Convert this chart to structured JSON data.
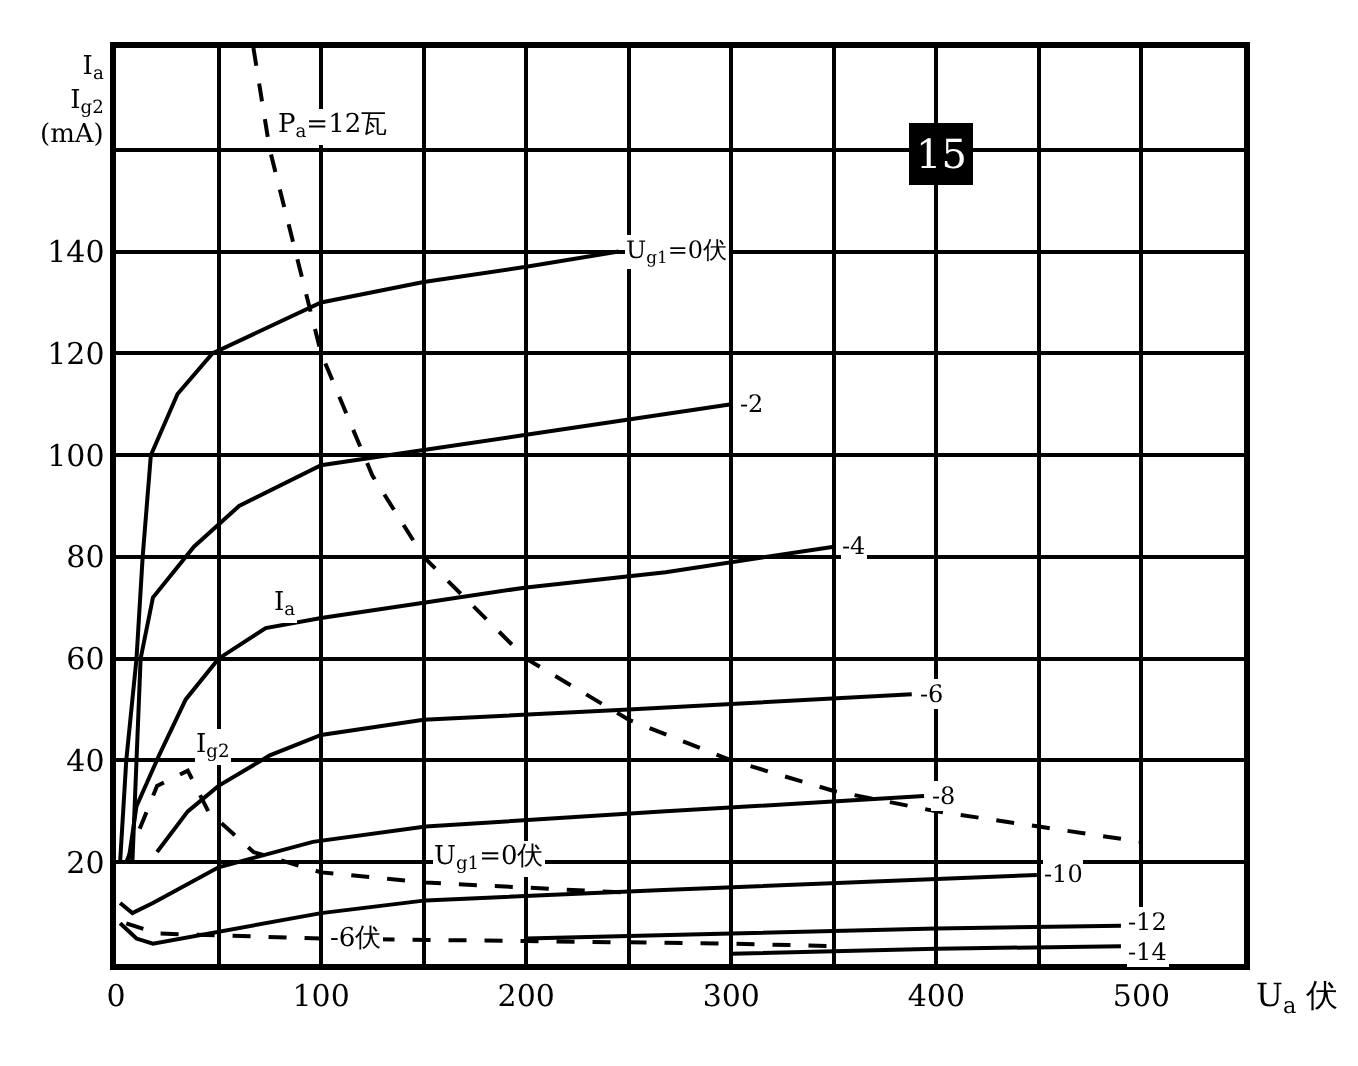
{
  "chart_data": {
    "type": "line",
    "xlabel": "U$_{a}$ 伏",
    "ylabel": "I$_{a}$ I$_{g2}$ (mA)",
    "xlim": [
      0,
      550
    ],
    "ylim": [
      0,
      180
    ],
    "xticks": [
      0,
      {
        "value": 50,
        "label": null
      },
      100,
      {
        "value": 150,
        "label": null
      },
      200,
      {
        "value": 250,
        "label": null
      },
      300,
      {
        "value": 350,
        "label": null
      },
      400,
      {
        "value": 450,
        "label": null
      },
      500,
      {
        "value": 550,
        "label": null
      }
    ],
    "yticks": [
      {
        "value": 0,
        "label": null
      },
      20,
      40,
      60,
      80,
      100,
      120,
      140,
      {
        "value": 160,
        "label": null
      },
      {
        "value": 180,
        "label": null
      }
    ],
    "grid": true,
    "line_style": "solid",
    "series": [
      {
        "name": "U$_{g1}$=0伏",
        "color": "#000000",
        "x": [
          2,
          5,
          10,
          13,
          17,
          30,
          47,
          100,
          150,
          200,
          245
        ],
        "values": [
          20,
          40,
          60,
          80,
          100,
          112,
          120,
          130,
          134,
          137,
          140
        ]
      },
      {
        "name": "-2",
        "color": "#000000",
        "x": [
          8,
          10,
          12,
          18,
          38,
          60,
          100,
          150,
          200,
          250,
          300
        ],
        "values": [
          20,
          40,
          60,
          72,
          82,
          90,
          98,
          101,
          104,
          107,
          110
        ]
      },
      {
        "name": "-4",
        "color": "#000000",
        "x": [
          6,
          10,
          21,
          34,
          50,
          73,
          100,
          150,
          200,
          268,
          350
        ],
        "values": [
          20,
          31,
          41,
          52,
          60,
          66,
          68,
          71,
          74,
          77,
          82
        ]
      },
      {
        "name": "-6",
        "color": "#000000",
        "x": [
          20,
          35,
          50,
          75,
          100,
          150,
          250,
          388
        ],
        "values": [
          22,
          30,
          35,
          41,
          45,
          48,
          50,
          53
        ]
      },
      {
        "name": "-8",
        "color": "#000000",
        "x": [
          2,
          8,
          18,
          50,
          96,
          151,
          268,
          394
        ],
        "values": [
          12,
          10,
          12,
          19,
          24,
          27,
          30,
          33
        ]
      },
      {
        "name": "-10",
        "color": "#000000",
        "x": [
          2,
          10,
          18,
          100,
          151,
          264,
          449
        ],
        "values": [
          8,
          5,
          4,
          10,
          12.5,
          14.5,
          17.5
        ]
      },
      {
        "name": "-12",
        "color": "#000000",
        "x": [
          200,
          300,
          400,
          490
        ],
        "values": [
          5,
          6,
          7,
          7.5
        ]
      },
      {
        "name": "-14",
        "color": "#000000",
        "x": [
          300,
          400,
          490
        ],
        "values": [
          2,
          3,
          3.5
        ]
      },
      {
        "color": "#000000",
        "line_style": "dashed",
        "x": [
          5,
          20,
          35,
          45,
          67,
          100,
          151,
          250
        ],
        "values": [
          20,
          35,
          38,
          30,
          22,
          18,
          16,
          14
        ]
      },
      {
        "color": "#000000",
        "line_style": "dashed",
        "x": [
          5,
          20,
          100,
          200,
          300,
          350
        ],
        "values": [
          8,
          6,
          5,
          4.5,
          4,
          3.5
        ]
      },
      {
        "color": "#000000",
        "line_style": "dashed",
        "x": [
          67,
          75,
          100,
          125,
          150,
          200,
          250,
          300,
          350,
          400,
          450,
          500
        ],
        "values": [
          180,
          160,
          120,
          96,
          80,
          60,
          48,
          40,
          34,
          30,
          27,
          24
        ]
      }
    ],
    "annotations": [
      {
        "text": "I$_{a}$",
        "x": 73,
        "y": 66
      },
      {
        "text": "I$_{g2}$",
        "x": 35,
        "y": 38
      },
      {
        "text": "U$_{g1}$=0伏",
        "x": 151,
        "y": 16
      },
      {
        "text": "-6伏",
        "x": 100,
        "y": 5
      },
      {
        "text": "P$_{a}$=12瓦",
        "x": 75,
        "y": 160
      },
      "15"
    ]
  }
}
